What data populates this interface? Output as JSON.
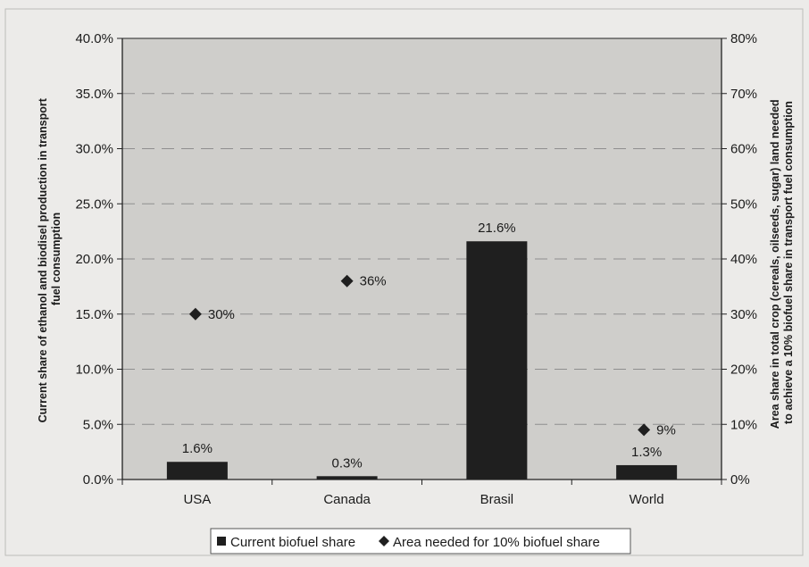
{
  "chart_data": {
    "type": "bar",
    "categories": [
      "USA",
      "Canada",
      "Brasil",
      "World"
    ],
    "series": [
      {
        "name": "Current biofuel share",
        "type": "bar",
        "axis": "left",
        "values": [
          1.6,
          0.3,
          21.6,
          1.3
        ],
        "labels": [
          "1.6%",
          "0.3%",
          "21.6%",
          "1.3%"
        ]
      },
      {
        "name": "Area needed for 10% biofuel share",
        "type": "scatter",
        "marker": "diamond",
        "axis": "right",
        "values": [
          30,
          36,
          null,
          9
        ],
        "labels": [
          "30%",
          "36%",
          "",
          "9%"
        ]
      }
    ],
    "ylabel": "Current share of ethanol and biodisel production in transport fuel consumption",
    "y2label": "Area share in total crop (cereals, oilseeds, sugar) land needed to achieve a 10% biofuel share in transport fuel consumption",
    "ylim": [
      0,
      40
    ],
    "y2lim": [
      0,
      80
    ],
    "yticks": [
      0,
      5,
      10,
      15,
      20,
      25,
      30,
      35,
      40
    ],
    "ytick_labels": [
      "0.0%",
      "5.0%",
      "10.0%",
      "15.0%",
      "20.0%",
      "25.0%",
      "30.0%",
      "35.0%",
      "40.0%"
    ],
    "y2ticks": [
      0,
      10,
      20,
      30,
      40,
      50,
      60,
      70,
      80
    ],
    "y2tick_labels": [
      "0%",
      "10%",
      "20%",
      "30%",
      "40%",
      "50%",
      "60%",
      "70%",
      "80%"
    ],
    "grid": true,
    "legend": "bottom",
    "colors": {
      "bar": "#1f1f1f",
      "marker": "#1f1f1f",
      "plot_bg": "#cfcecb",
      "page_bg": "#ecebe9",
      "grid": "#8f8f8f"
    }
  }
}
